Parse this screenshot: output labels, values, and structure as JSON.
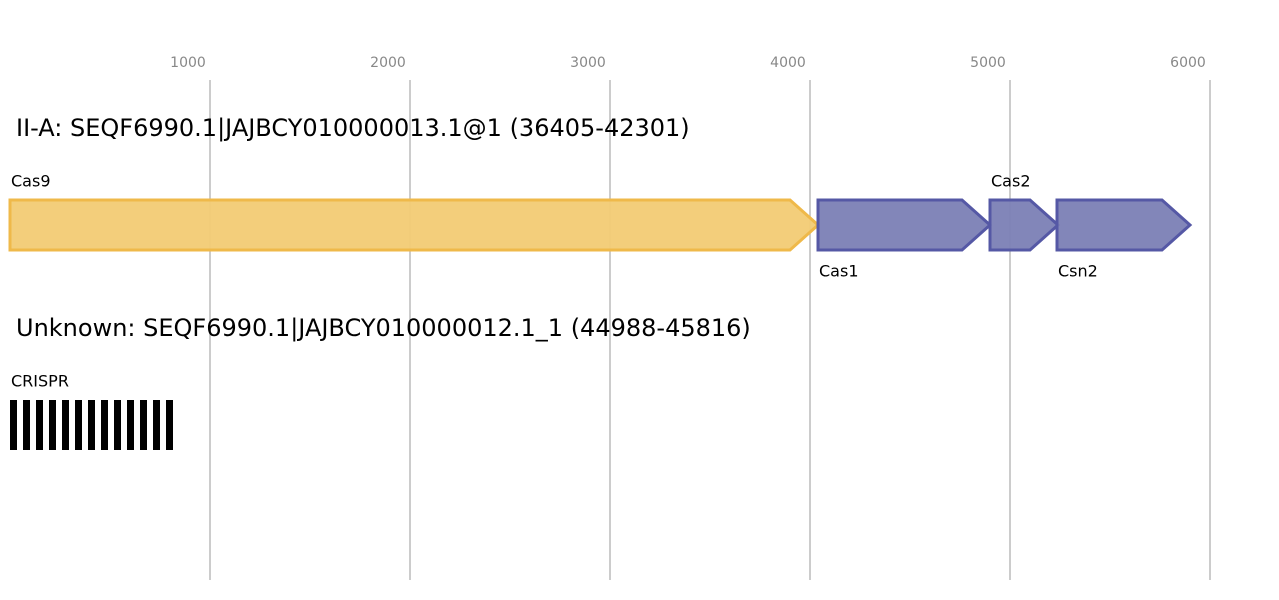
{
  "axis": {
    "ticks": [
      1000,
      2000,
      3000,
      4000,
      5000,
      6000
    ]
  },
  "loci": [
    {
      "title": "II-A: SEQF6990.1|JAJBCY010000013.1@1 (36405-42301)",
      "genes": [
        {
          "name": "Cas9",
          "start": 0,
          "end": 4040,
          "fill": "#f2cb74",
          "stroke": "#efb94a"
        },
        {
          "name": "Cas1",
          "start": 4040,
          "end": 4900,
          "fill": "#7b7fb5",
          "stroke": "#5558a5"
        },
        {
          "name": "Cas2",
          "start": 4900,
          "end": 5240,
          "fill": "#7b7fb5",
          "stroke": "#5558a5"
        },
        {
          "name": "Csn2",
          "start": 5235,
          "end": 5900,
          "fill": "#7b7fb5",
          "stroke": "#5558a5"
        }
      ]
    },
    {
      "title": "Unknown: SEQF6990.1|JAJBCY010000012.1_1 (44988-45816)",
      "genes": [
        {
          "name": "CRISPR",
          "start": 0,
          "end": 830,
          "type": "crispr"
        }
      ]
    }
  ]
}
